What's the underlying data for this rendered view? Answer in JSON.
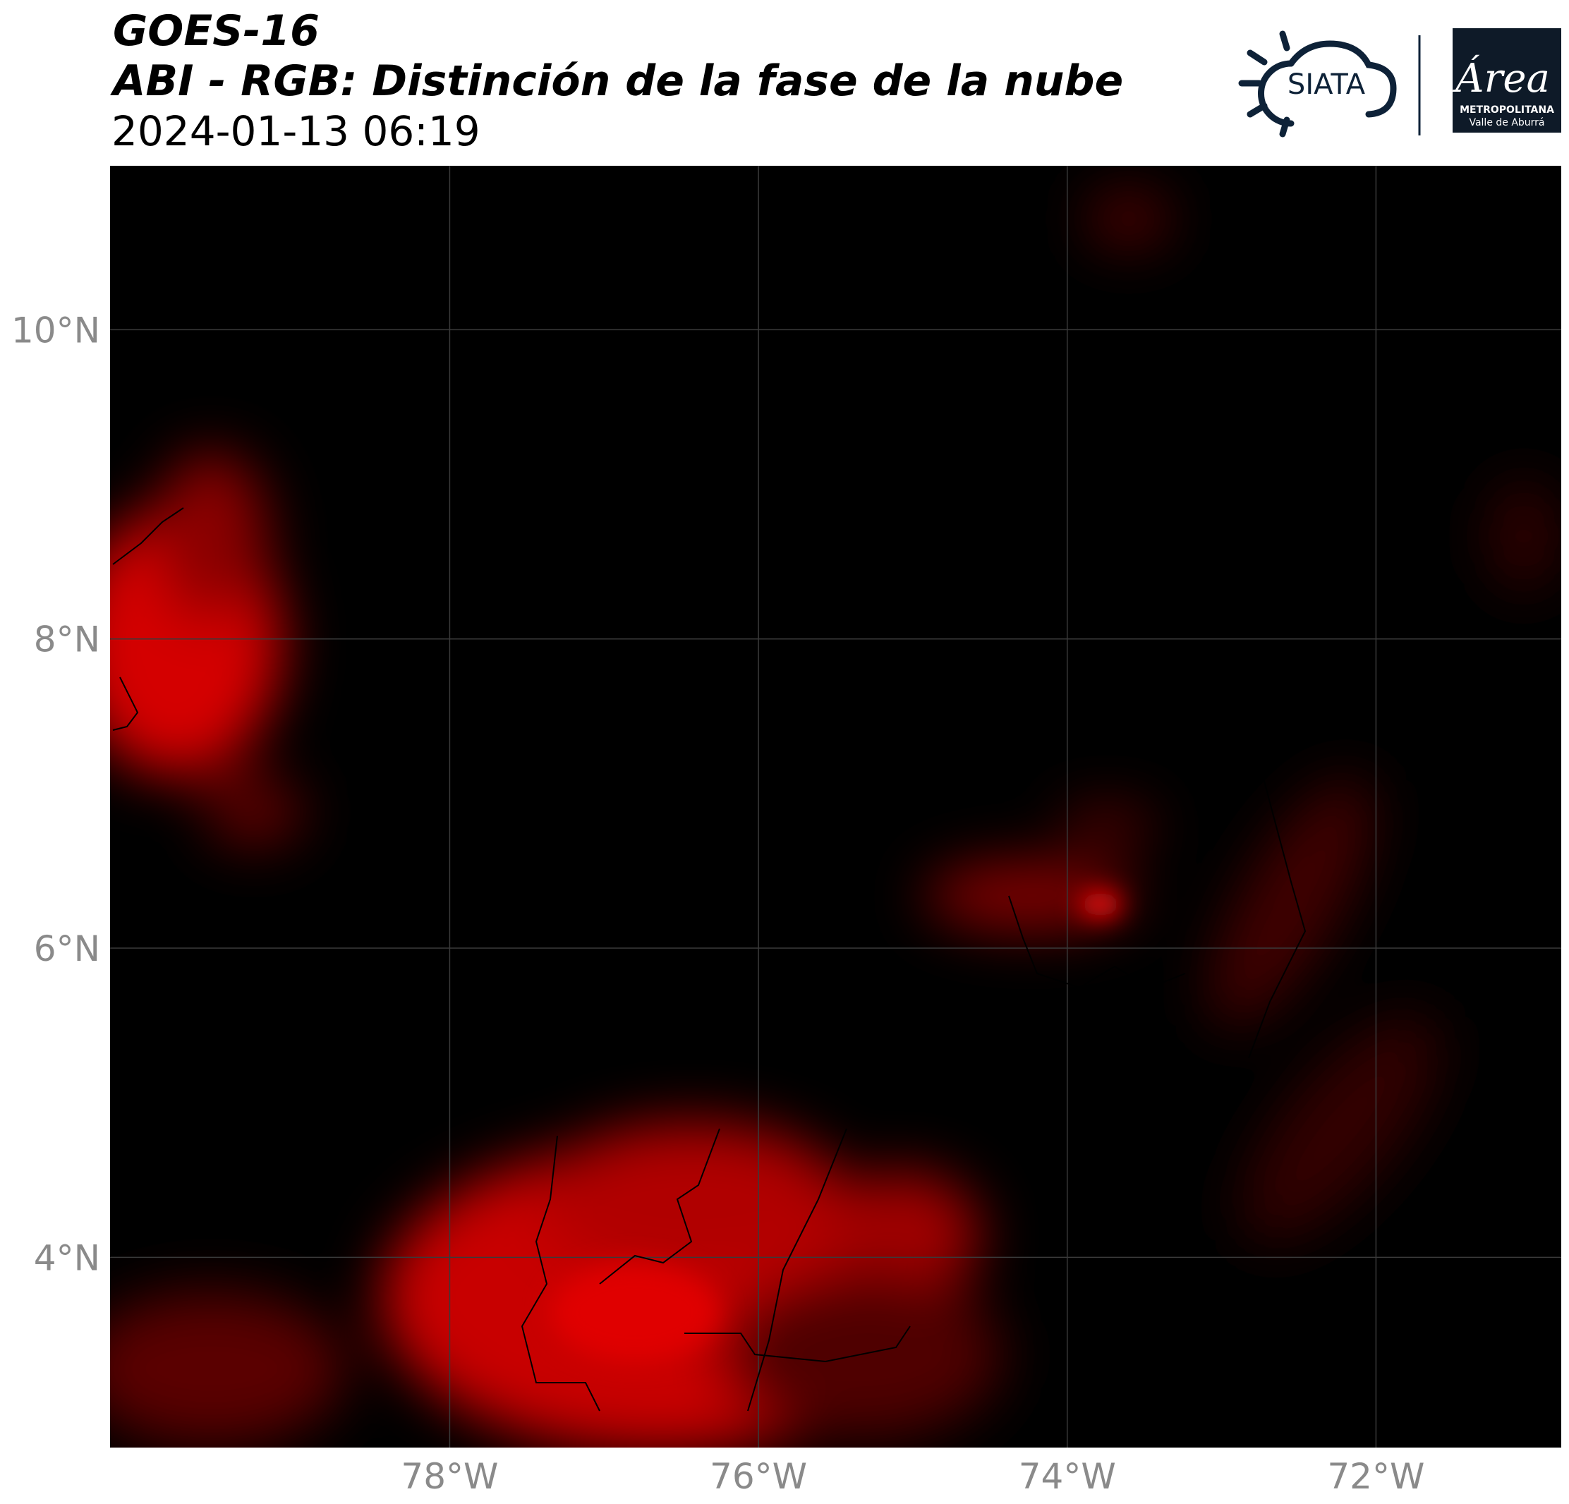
{
  "header": {
    "title": "GOES-16",
    "subtitle": "ABI - RGB: Distinción de la fase de la nube",
    "timestamp": "2024-01-13 06:19"
  },
  "logos": {
    "siata": "SIATA",
    "area": "Área",
    "area_line1": "METROPOLITANA",
    "area_line2": "Valle de Aburrá"
  },
  "map": {
    "xlim": [
      -80.2,
      -70.8
    ],
    "ylim": [
      2.77,
      11.06
    ],
    "grid": true,
    "xticks": [
      {
        "value": -78,
        "label": "78°W"
      },
      {
        "value": -76,
        "label": "76°W"
      },
      {
        "value": -74,
        "label": "74°W"
      },
      {
        "value": -72,
        "label": "72°W"
      }
    ],
    "yticks": [
      {
        "value": 4,
        "label": "4°N"
      },
      {
        "value": 6,
        "label": "6°N"
      },
      {
        "value": 8,
        "label": "8°N"
      },
      {
        "value": 10,
        "label": "10°N"
      }
    ]
  }
}
